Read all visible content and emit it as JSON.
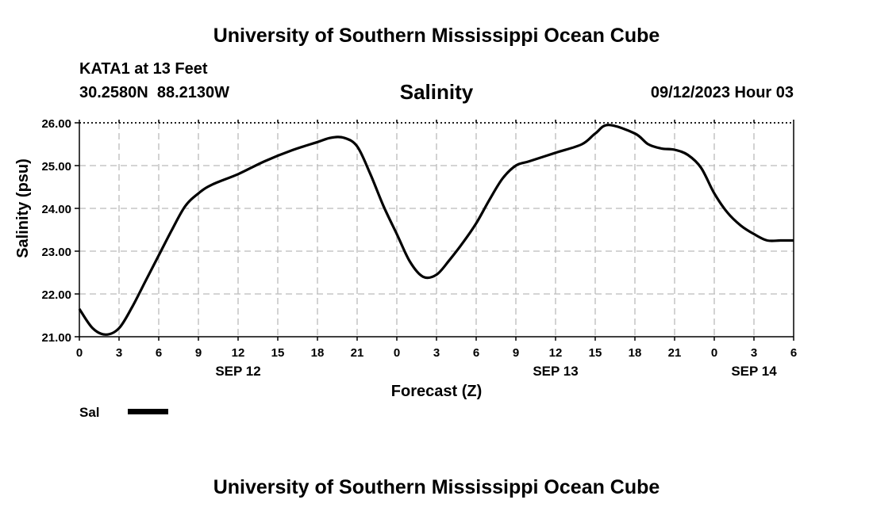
{
  "header": {
    "title": "University of Southern Mississippi Ocean Cube",
    "station": "KATA1 at 13 Feet",
    "coords": "30.2580N  88.2130W",
    "chart_title": "Salinity",
    "timestamp": "09/12/2023 Hour 03"
  },
  "footer": {
    "title": "University of Southern Mississippi Ocean Cube"
  },
  "legend": {
    "label": "Sal",
    "color": "#000000"
  },
  "chart_data": {
    "type": "line",
    "title": "Salinity",
    "xlabel": "Forecast (Z)",
    "ylabel": "Salinity (psu)",
    "ylim": [
      21.0,
      26.0
    ],
    "xlim": [
      0,
      54
    ],
    "y_ticks": [
      "21.00",
      "22.00",
      "23.00",
      "24.00",
      "25.00",
      "26.00"
    ],
    "x_tick_labels": [
      "0",
      "3",
      "6",
      "9",
      "12",
      "15",
      "18",
      "21",
      "0",
      "3",
      "6",
      "9",
      "12",
      "15",
      "18",
      "21",
      "0",
      "3",
      "6"
    ],
    "date_labels": [
      {
        "label": "SEP 12",
        "at_hour": 12
      },
      {
        "label": "SEP 13",
        "at_hour": 36
      },
      {
        "label": "SEP 14",
        "at_hour": 51
      }
    ],
    "grid": true,
    "legend_position": "bottom-left",
    "series": [
      {
        "name": "Sal",
        "color": "#000000",
        "x": [
          0,
          1,
          2,
          3,
          4,
          5,
          6,
          7,
          8,
          9,
          10,
          12,
          14,
          16,
          18,
          19,
          20,
          21,
          22,
          23,
          24,
          25,
          26,
          27,
          28,
          29,
          30,
          31,
          32,
          33,
          34,
          36,
          38,
          39,
          40,
          42,
          43,
          44,
          45,
          46,
          47,
          48,
          49,
          50,
          51,
          52,
          53,
          54
        ],
        "y": [
          21.65,
          21.2,
          21.05,
          21.2,
          21.7,
          22.3,
          22.9,
          23.5,
          24.05,
          24.35,
          24.55,
          24.8,
          25.1,
          25.35,
          25.55,
          25.65,
          25.65,
          25.45,
          24.8,
          24.05,
          23.4,
          22.75,
          22.4,
          22.45,
          22.8,
          23.2,
          23.65,
          24.2,
          24.7,
          25.0,
          25.1,
          25.3,
          25.5,
          25.75,
          25.95,
          25.75,
          25.5,
          25.4,
          25.37,
          25.25,
          24.95,
          24.35,
          23.9,
          23.6,
          23.4,
          23.25,
          23.25,
          23.25
        ]
      }
    ]
  }
}
